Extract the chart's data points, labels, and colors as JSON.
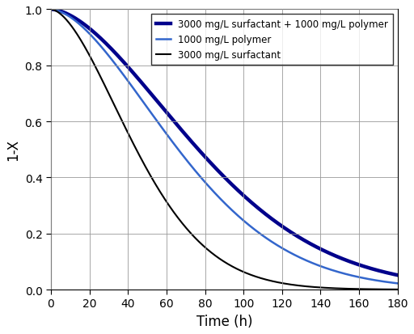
{
  "title": "",
  "xlabel": "Time (h)",
  "ylabel": "1-X",
  "xlim": [
    0,
    180
  ],
  "ylim": [
    0.0,
    1.0
  ],
  "xticks": [
    0,
    20,
    40,
    60,
    80,
    100,
    120,
    140,
    160,
    180
  ],
  "yticks": [
    0.0,
    0.2,
    0.4,
    0.6,
    0.8,
    1.0
  ],
  "series": [
    {
      "label": "3000 mg/L surfactant + 1000 mg/L polymer",
      "color": "#00008B",
      "linewidth": 3.2,
      "tau": 95.0,
      "n": 1.7
    },
    {
      "label": "1000 mg/L polymer",
      "color": "#3366CC",
      "linewidth": 1.8,
      "tau": 82.0,
      "n": 1.7
    },
    {
      "label": "3000 mg/L surfactant",
      "color": "#000000",
      "linewidth": 1.5,
      "tau": 55.0,
      "n": 1.7
    }
  ],
  "legend_loc": "upper right",
  "grid": true,
  "background_color": "#ffffff",
  "legend_fontsize": 8.5,
  "axis_fontsize": 12,
  "tick_fontsize": 10
}
